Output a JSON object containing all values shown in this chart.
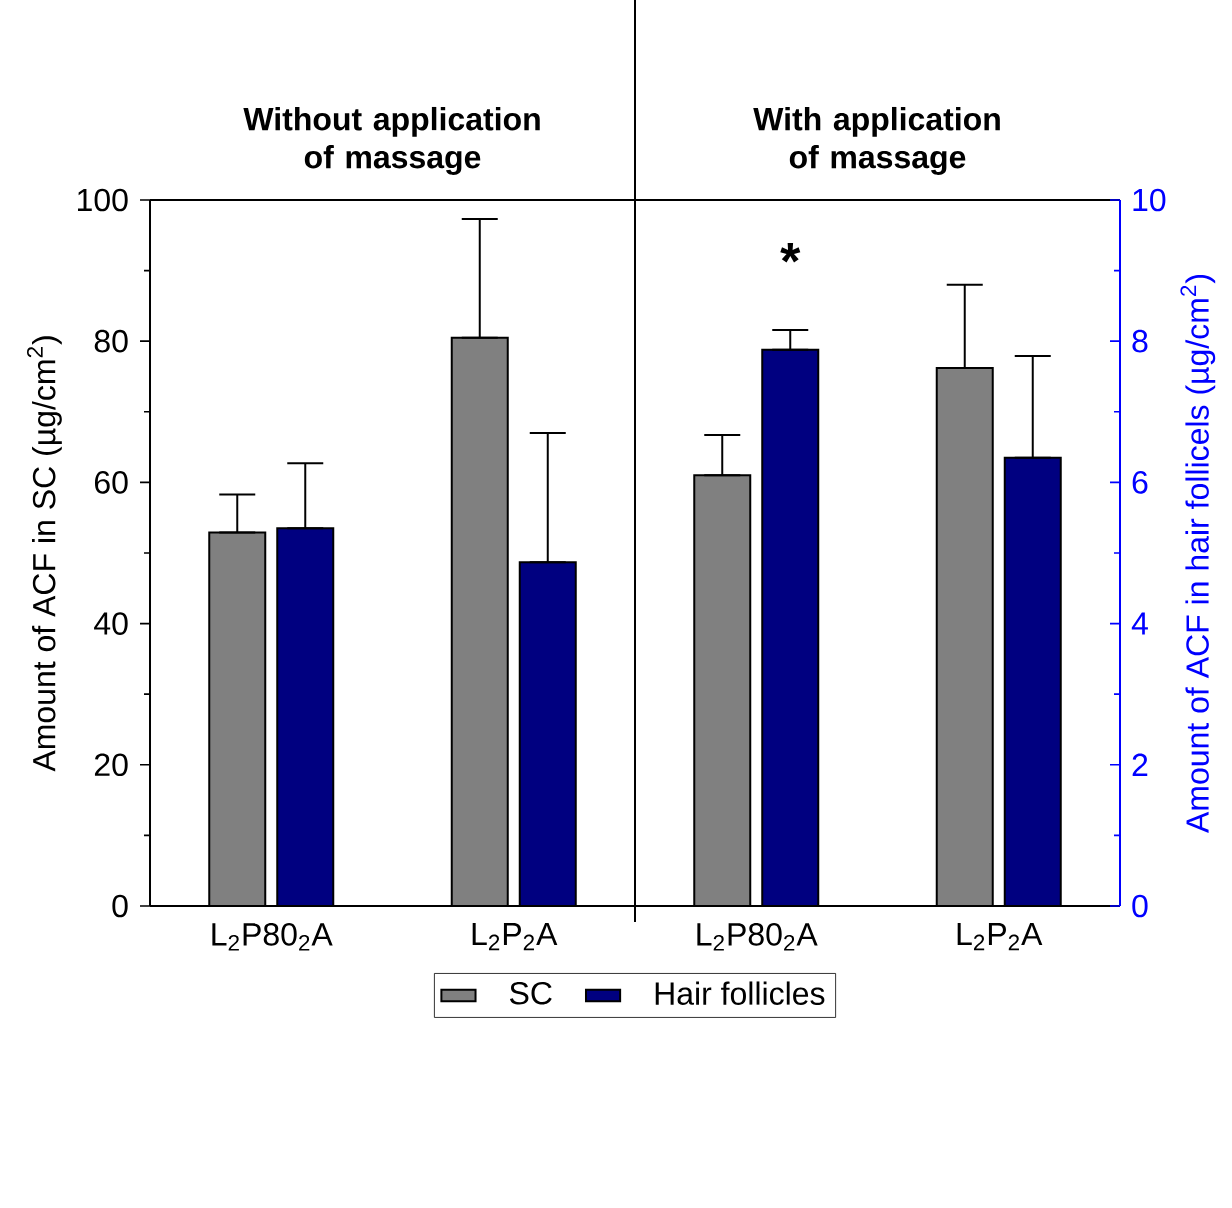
{
  "chart_data": {
    "type": "bar",
    "categories": [
      "L$_{2}$P80$_{2}$A",
      "L$_{2}$P$_{2}$A",
      "L$_{2}$P80$_{2}$A",
      "L$_{2}$P$_{2}$A"
    ],
    "series": [
      {
        "name": "SC",
        "color": "#808080",
        "values": [
          52.9,
          80.5,
          61.0,
          76.2
        ],
        "errors": [
          [
            52.9,
            58.3
          ],
          [
            80.5,
            97.3
          ],
          [
            61.0,
            66.7
          ],
          [
            76.2,
            88.0
          ]
        ]
      },
      {
        "name": "Hair follicles",
        "color": "#000080",
        "axis": "y2",
        "values": [
          5.35,
          4.87,
          7.88,
          6.35
        ],
        "errors": [
          [
            5.35,
            6.27
          ],
          [
            4.87,
            6.7
          ],
          [
            7.88,
            8.16
          ],
          [
            6.35,
            7.79
          ]
        ]
      }
    ],
    "ylabel": "Amount of ACF in SC (µg/cm$^{2}$)",
    "y2label": "Amount of ACF in hair follicels (µg/cm$^{2}$)",
    "ylim": [
      0,
      100
    ],
    "yticks": [
      0,
      20,
      40,
      60,
      80,
      100
    ],
    "y2lim": [
      0,
      10
    ],
    "y2ticks": [
      0,
      2,
      4,
      6,
      8,
      10
    ],
    "annotations": [
      "Without application of massage",
      "With application of massage",
      "*"
    ],
    "legend": "bottom"
  }
}
